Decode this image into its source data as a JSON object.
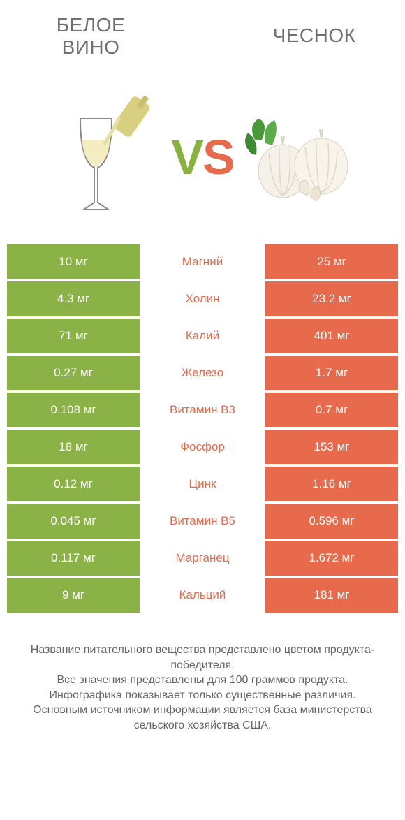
{
  "header": {
    "left_title_line1": "Белое",
    "left_title_line2": "вино",
    "right_title": "Чеснок"
  },
  "vs": {
    "letter_v": "V",
    "letter_s": "S"
  },
  "colors": {
    "green": "#8ab246",
    "orange": "#e86a4c",
    "text_gray": "#707070",
    "bg": "#ffffff"
  },
  "table": {
    "type": "comparison-table",
    "rows": [
      {
        "left": "10 мг",
        "mid": "Магний",
        "right": "25 мг",
        "mid_color": "orange"
      },
      {
        "left": "4.3 мг",
        "mid": "Холин",
        "right": "23.2 мг",
        "mid_color": "orange"
      },
      {
        "left": "71 мг",
        "mid": "Калий",
        "right": "401 мг",
        "mid_color": "orange"
      },
      {
        "left": "0.27 мг",
        "mid": "Железо",
        "right": "1.7 мг",
        "mid_color": "orange"
      },
      {
        "left": "0.108 мг",
        "mid": "Витамин B3",
        "right": "0.7 мг",
        "mid_color": "orange"
      },
      {
        "left": "18 мг",
        "mid": "Фосфор",
        "right": "153 мг",
        "mid_color": "orange"
      },
      {
        "left": "0.12 мг",
        "mid": "Цинк",
        "right": "1.16 мг",
        "mid_color": "orange"
      },
      {
        "left": "0.045 мг",
        "mid": "Витамин B5",
        "right": "0.596 мг",
        "mid_color": "orange"
      },
      {
        "left": "0.117 мг",
        "mid": "Марганец",
        "right": "1.672 мг",
        "mid_color": "orange"
      },
      {
        "left": "9 мг",
        "mid": "Кальций",
        "right": "181 мг",
        "mid_color": "orange"
      }
    ],
    "left_col_color": "green",
    "right_col_color": "orange"
  },
  "footnote": {
    "line1": "Название питательного вещества представлено цветом продукта-победителя.",
    "line2": "Все значения представлены для 100 граммов продукта.",
    "line3": "Инфографика показывает только существенные различия.",
    "line4": "Основным источником информации является база министерства сельского хозяйства США."
  }
}
